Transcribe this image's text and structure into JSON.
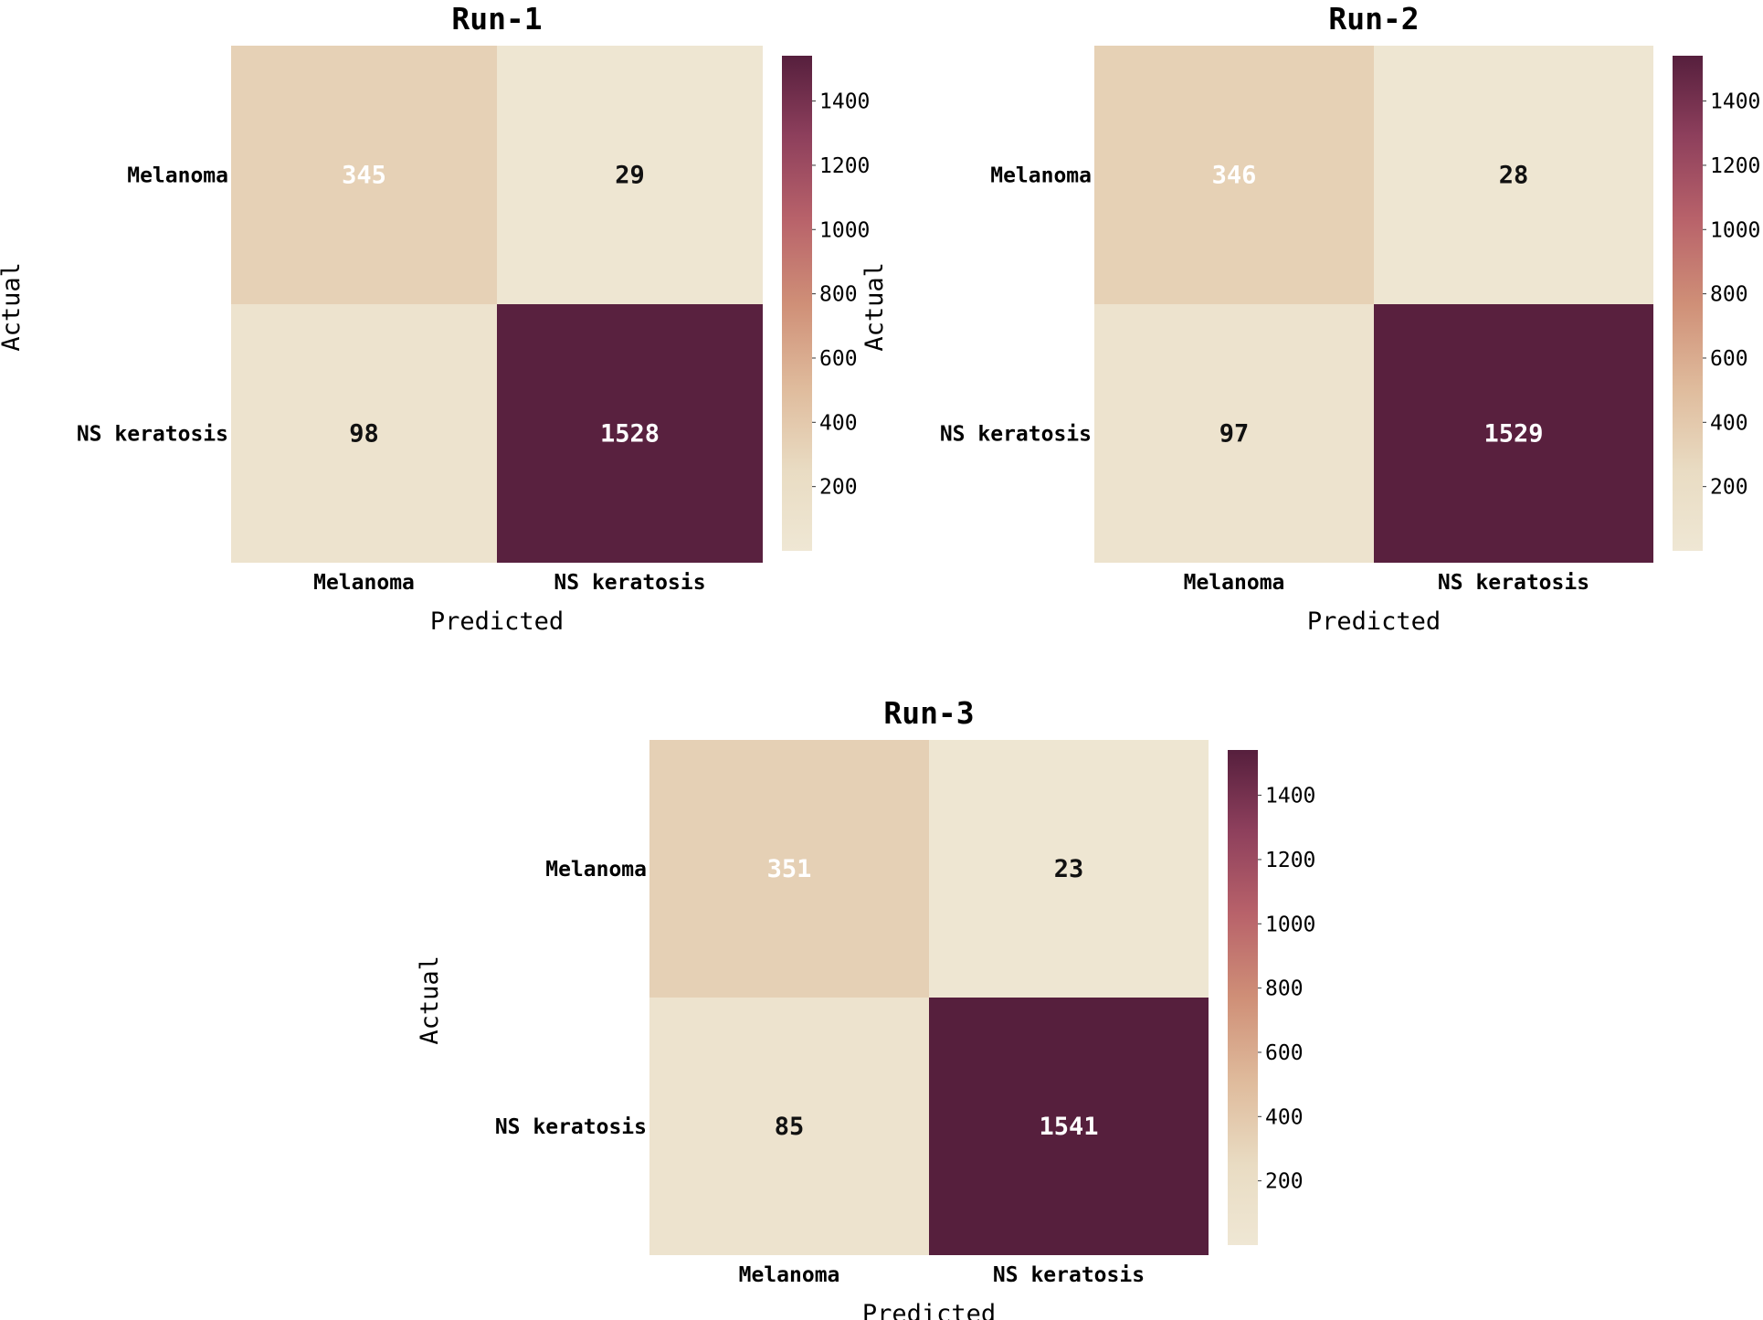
{
  "chart_data": [
    {
      "type": "heatmap",
      "title": "Run-1",
      "xlabel": "Predicted",
      "ylabel": "Actual",
      "x_categories": [
        "Melanoma",
        "NS keratosis"
      ],
      "y_categories": [
        "Melanoma",
        "NS keratosis"
      ],
      "values": [
        [
          345,
          29
        ],
        [
          98,
          1528
        ]
      ],
      "colorbar": {
        "range": [
          0,
          1541
        ],
        "ticks": [
          200,
          400,
          600,
          800,
          1000,
          1200,
          1400
        ]
      }
    },
    {
      "type": "heatmap",
      "title": "Run-2",
      "xlabel": "Predicted",
      "ylabel": "Actual",
      "x_categories": [
        "Melanoma",
        "NS keratosis"
      ],
      "y_categories": [
        "Melanoma",
        "NS keratosis"
      ],
      "values": [
        [
          346,
          28
        ],
        [
          97,
          1529
        ]
      ],
      "colorbar": {
        "range": [
          0,
          1541
        ],
        "ticks": [
          200,
          400,
          600,
          800,
          1000,
          1200,
          1400
        ]
      }
    },
    {
      "type": "heatmap",
      "title": "Run-3",
      "xlabel": "Predicted",
      "ylabel": "Actual",
      "x_categories": [
        "Melanoma",
        "NS keratosis"
      ],
      "y_categories": [
        "Melanoma",
        "NS keratosis"
      ],
      "values": [
        [
          351,
          23
        ],
        [
          85,
          1541
        ]
      ],
      "colorbar": {
        "range": [
          0,
          1541
        ],
        "ticks": [
          200,
          400,
          600,
          800,
          1000,
          1200,
          1400
        ]
      }
    }
  ],
  "colormap": {
    "name": "cream-to-plum",
    "stops": [
      "#efe7d4",
      "#e9dcc3",
      "#dfbb9c",
      "#cf8f77",
      "#b8626a",
      "#8d3f5c",
      "#561f3d"
    ]
  }
}
